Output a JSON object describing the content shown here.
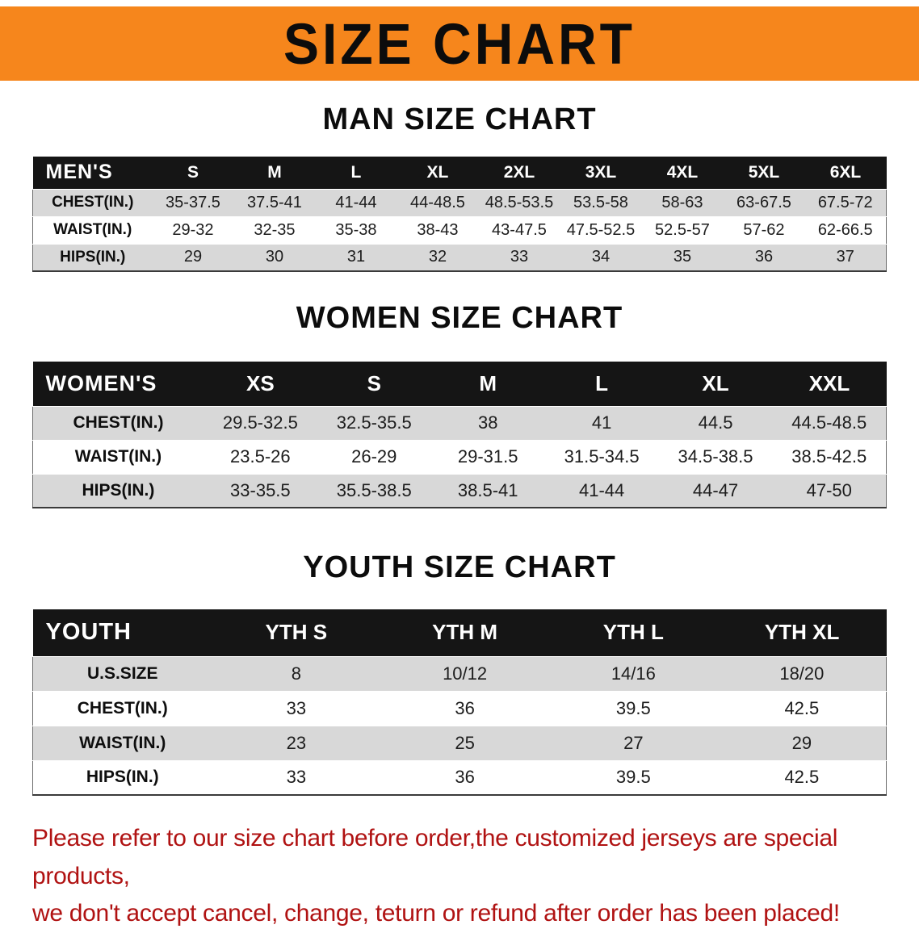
{
  "banner": {
    "title": "SIZE CHART"
  },
  "colors": {
    "banner_orange": "#f6861c",
    "header_black": "#151515",
    "stripe_gray": "#d8d8d8",
    "notice_red": "#b01212"
  },
  "sections": [
    {
      "heading": "MAN SIZE CHART",
      "table": {
        "header": [
          "MEN'S",
          "S",
          "M",
          "L",
          "XL",
          "2XL",
          "3XL",
          "4XL",
          "5XL",
          "6XL"
        ],
        "rows": [
          [
            "CHEST(IN.)",
            "35-37.5",
            "37.5-41",
            "41-44",
            "44-48.5",
            "48.5-53.5",
            "53.5-58",
            "58-63",
            "63-67.5",
            "67.5-72"
          ],
          [
            "WAIST(IN.)",
            "29-32",
            "32-35",
            "35-38",
            "38-43",
            "43-47.5",
            "47.5-52.5",
            "52.5-57",
            "57-62",
            "62-66.5"
          ],
          [
            "HIPS(IN.)",
            "29",
            "30",
            "31",
            "32",
            "33",
            "34",
            "35",
            "36",
            "37"
          ]
        ]
      }
    },
    {
      "heading": "WOMEN SIZE CHART",
      "table": {
        "header": [
          "WOMEN'S",
          "XS",
          "S",
          "M",
          "L",
          "XL",
          "XXL"
        ],
        "rows": [
          [
            "CHEST(IN.)",
            "29.5-32.5",
            "32.5-35.5",
            "38",
            "41",
            "44.5",
            "44.5-48.5"
          ],
          [
            "WAIST(IN.)",
            "23.5-26",
            "26-29",
            "29-31.5",
            "31.5-34.5",
            "34.5-38.5",
            "38.5-42.5"
          ],
          [
            "HIPS(IN.)",
            "33-35.5",
            "35.5-38.5",
            "38.5-41",
            "41-44",
            "44-47",
            "47-50"
          ]
        ]
      }
    },
    {
      "heading": "YOUTH SIZE CHART",
      "table": {
        "header": [
          "YOUTH",
          "YTH S",
          "YTH M",
          "YTH L",
          "YTH XL"
        ],
        "rows": [
          [
            "U.S.SIZE",
            "8",
            "10/12",
            "14/16",
            "18/20"
          ],
          [
            "CHEST(IN.)",
            "33",
            "36",
            "39.5",
            "42.5"
          ],
          [
            "WAIST(IN.)",
            "23",
            "25",
            "27",
            "29"
          ],
          [
            "HIPS(IN.)",
            "33",
            "36",
            "39.5",
            "42.5"
          ]
        ]
      }
    }
  ],
  "footer": {
    "line1": "Please refer to our size chart before order,the customized jerseys are special products,",
    "line2": "we don't accept cancel, change, teturn or refund after order has been placed!"
  }
}
